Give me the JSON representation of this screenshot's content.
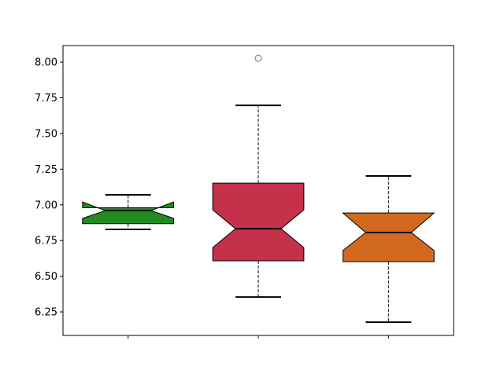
{
  "chart_data": {
    "type": "boxplot",
    "notched": true,
    "title": "",
    "xlabel": "",
    "ylabel": "",
    "ylim": [
      6.085,
      8.116
    ],
    "xlim": [
      0.5,
      3.5
    ],
    "yticks": [
      "6.25",
      "6.50",
      "6.75",
      "7.00",
      "7.25",
      "7.50",
      "7.75",
      "8.00"
    ],
    "xtick_labels": [
      "",
      "",
      ""
    ],
    "boxes": [
      {
        "position": 1,
        "color": "#228b22",
        "whisker_low": 6.828,
        "q1": 6.868,
        "notch_low": 6.905,
        "median": 6.96,
        "notch_high": 7.02,
        "q3": 6.98,
        "whisker_high": 7.07,
        "outliers": []
      },
      {
        "position": 2,
        "color": "#c5314a",
        "whisker_low": 6.354,
        "q1": 6.608,
        "notch_low": 6.7,
        "median": 6.833,
        "notch_high": 6.965,
        "q3": 7.152,
        "whisker_high": 7.697,
        "outliers": [
          8.027
        ]
      },
      {
        "position": 3,
        "color": "#d2691e",
        "whisker_low": 6.178,
        "q1": 6.602,
        "notch_low": 6.68,
        "median": 6.806,
        "notch_high": 6.943,
        "q3": 6.943,
        "whisker_high": 7.202,
        "outliers": []
      }
    ]
  }
}
